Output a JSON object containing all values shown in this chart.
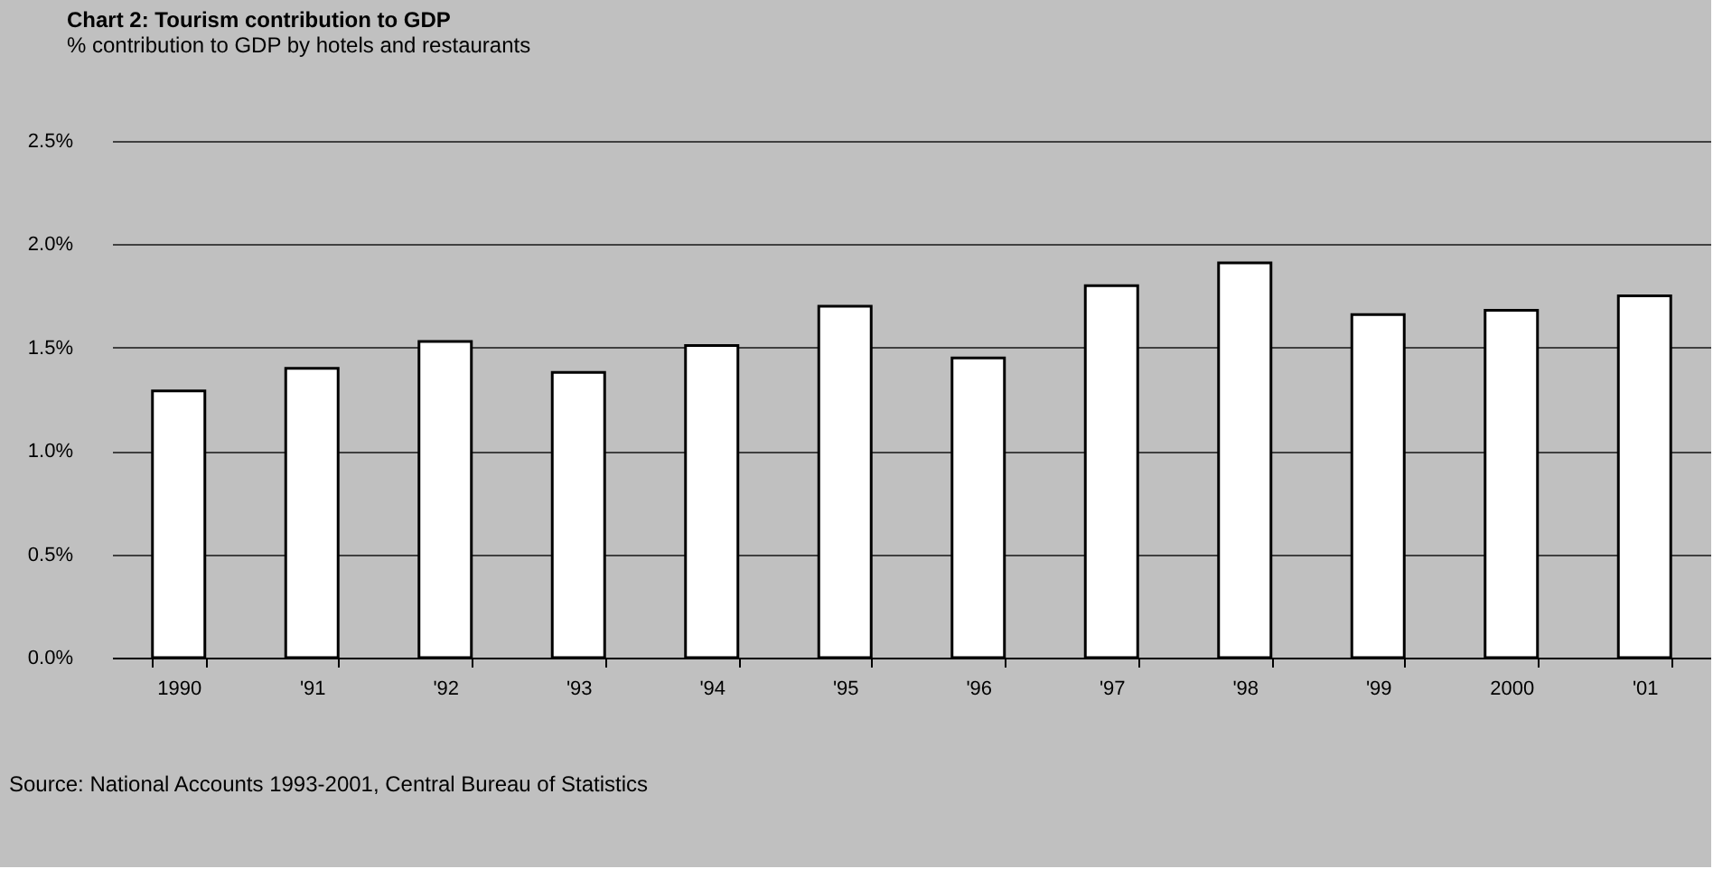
{
  "chart_data": {
    "type": "bar",
    "title": "Chart 2: Tourism contribution to GDP",
    "subtitle": "% contribution to GDP by hotels and restaurants",
    "categories": [
      "1990",
      "'91",
      "'92",
      "'93",
      "'94",
      "'95",
      "'96",
      "'97",
      "'98",
      "'99",
      "2000",
      "'01"
    ],
    "values": [
      1.29,
      1.4,
      1.53,
      1.38,
      1.51,
      1.7,
      1.45,
      1.8,
      1.91,
      1.66,
      1.68,
      1.75
    ],
    "color": "#ffffff",
    "ylim": [
      0,
      2.5
    ],
    "yticks": [
      {
        "value": 0,
        "label": "0.0%"
      },
      {
        "value": 0.5,
        "label": "0.5%"
      },
      {
        "value": 1,
        "label": "1.0%"
      },
      {
        "value": 1.5,
        "label": "1.5%"
      },
      {
        "value": 2,
        "label": "2.0%"
      },
      {
        "value": 2.5,
        "label": "2.5%"
      }
    ],
    "grid": "y",
    "annotations": [
      "Source: National Accounts 1993-2001, Central Bureau of Statistics"
    ]
  }
}
